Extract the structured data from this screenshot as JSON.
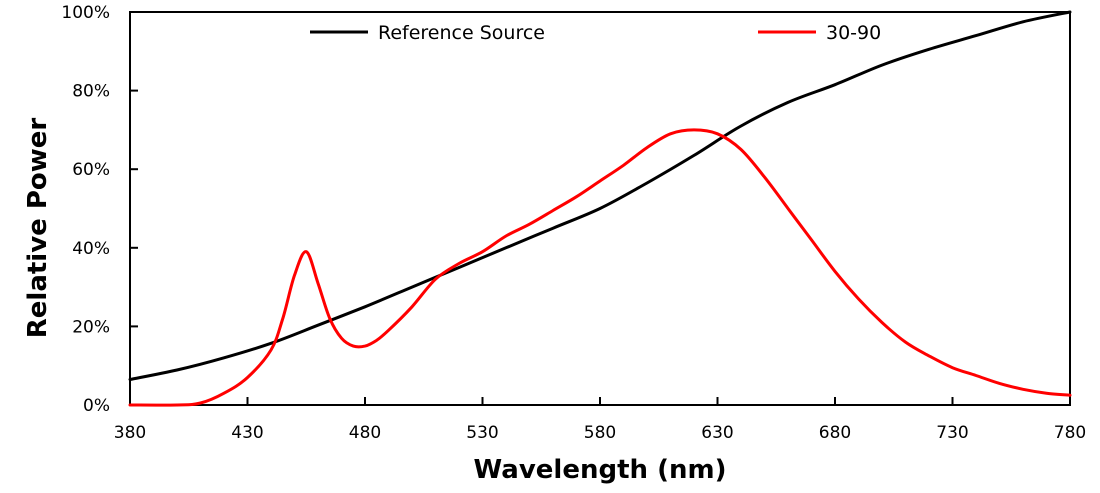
{
  "chart_data": {
    "type": "line",
    "title": "",
    "xlabel": "Wavelength (nm)",
    "ylabel": "Relative Power",
    "xlim": [
      380,
      780
    ],
    "ylim": [
      0,
      100
    ],
    "x_ticks": [
      380,
      430,
      480,
      530,
      580,
      630,
      680,
      730,
      780
    ],
    "y_ticks": [
      0,
      20,
      40,
      60,
      80,
      100
    ],
    "x_tick_labels": [
      "380",
      "430",
      "480",
      "530",
      "580",
      "630",
      "680",
      "730",
      "780"
    ],
    "y_tick_labels": [
      "0%",
      "20%",
      "40%",
      "60%",
      "80%",
      "100%"
    ],
    "grid": false,
    "legend_position": "top",
    "series": [
      {
        "name": "Reference Source",
        "color": "#000000",
        "x": [
          380,
          400,
          420,
          440,
          460,
          480,
          500,
          520,
          540,
          560,
          580,
          600,
          620,
          640,
          660,
          680,
          700,
          720,
          740,
          760,
          780
        ],
        "y": [
          6.5,
          8.9,
          12.0,
          15.7,
          20.3,
          25.0,
          30.0,
          35.0,
          40.0,
          45.0,
          50.0,
          56.5,
          63.5,
          71.0,
          77.0,
          81.5,
          86.5,
          90.5,
          94.0,
          97.5,
          100.0
        ]
      },
      {
        "name": "30-90",
        "color": "#ff0000",
        "x": [
          380,
          400,
          410,
          420,
          430,
          440,
          445,
          450,
          455,
          460,
          465,
          470,
          475,
          480,
          485,
          490,
          500,
          510,
          520,
          530,
          540,
          550,
          560,
          570,
          580,
          590,
          600,
          610,
          620,
          630,
          640,
          650,
          660,
          670,
          680,
          690,
          700,
          710,
          720,
          730,
          740,
          750,
          760,
          770,
          780
        ],
        "y": [
          0,
          0,
          0.5,
          3.0,
          7.0,
          14.0,
          22.0,
          33.0,
          39.0,
          31.0,
          22.0,
          17.0,
          15.0,
          15.0,
          16.5,
          19.0,
          25.0,
          32.0,
          36.0,
          39.0,
          43.0,
          46.0,
          49.5,
          53.0,
          57.0,
          61.0,
          65.5,
          69.0,
          70.0,
          69.0,
          65.0,
          58.0,
          50.0,
          42.0,
          34.0,
          27.0,
          21.0,
          16.0,
          12.5,
          9.5,
          7.5,
          5.5,
          4.0,
          3.0,
          2.5
        ]
      }
    ]
  }
}
